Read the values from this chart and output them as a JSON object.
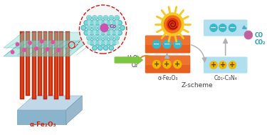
{
  "bg_color": "#ffffff",
  "arrow_green": "#7dc542",
  "fe2o3_orange": "#e86020",
  "fe2o3_orange_light": "#f08840",
  "c3n4_color": "#b0dff0",
  "electron_color": "#38b8cc",
  "hole_color": "#f0b800",
  "co_ball_color": "#c060a0",
  "label_fe2o3": "α-Fe₂O₃",
  "label_c3n4": "Co₁-C₃N₄",
  "label_zscheme": "Z-scheme",
  "label_h2o": "H₂O",
  "label_o2": "O₂",
  "label_co": "CO",
  "label_co2": "CO₂",
  "sun_inner": "#e83010",
  "sun_mid": "#f07018",
  "sun_outer": "#f8c820",
  "plate_color": "#b0cce0",
  "rod_color": "#d03010",
  "rod_highlight": "#f06030",
  "sheet_color": "#80d8d0",
  "co_atom_color": "#d050b0"
}
